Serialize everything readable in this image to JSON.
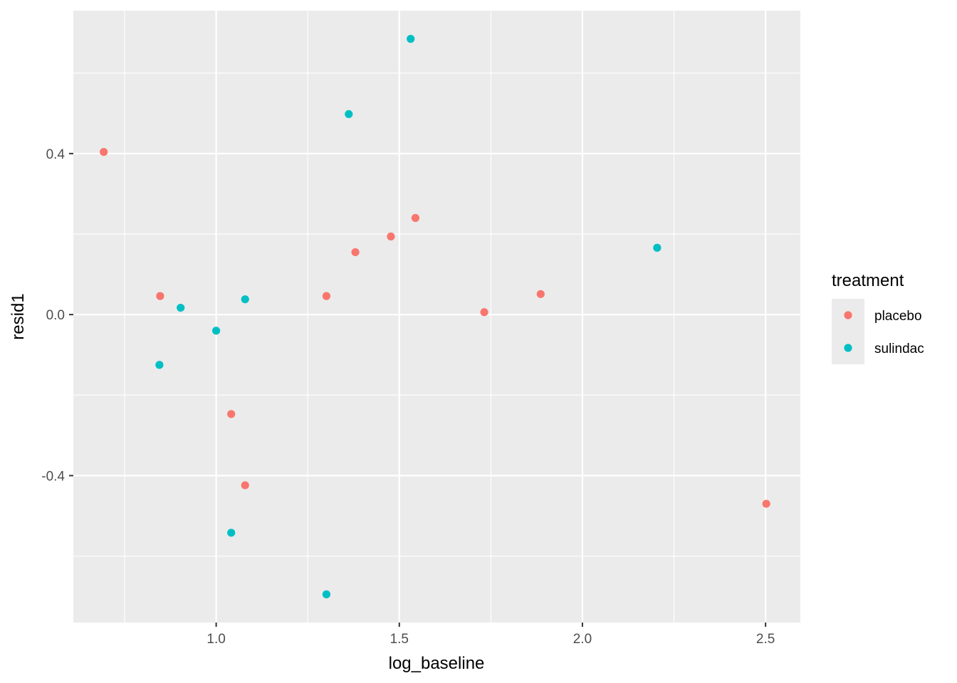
{
  "chart_data": {
    "type": "scatter",
    "xlabel": "log_baseline",
    "ylabel": "resid1",
    "xlim": [
      0.61,
      2.595
    ],
    "ylim": [
      -0.765,
      0.755
    ],
    "x_ticks": [
      1.0,
      1.5,
      2.0,
      2.5
    ],
    "x_tick_labels": [
      "1.0",
      "1.5",
      "2.0",
      "2.5"
    ],
    "x_minor": [
      0.75,
      1.25,
      1.75,
      2.25
    ],
    "y_ticks": [
      -0.4,
      0.0,
      0.4
    ],
    "y_tick_labels": [
      "-0.4",
      "0.0",
      "0.4"
    ],
    "y_minor": [
      -0.6,
      -0.2,
      0.2,
      0.6
    ],
    "grid": true,
    "legend": {
      "title": "treatment",
      "position": "right"
    },
    "series": [
      {
        "name": "placebo",
        "color": "#F8766D",
        "points": [
          {
            "x": 0.693,
            "y": 0.404
          },
          {
            "x": 0.847,
            "y": 0.046
          },
          {
            "x": 1.041,
            "y": -0.247
          },
          {
            "x": 1.079,
            "y": -0.424
          },
          {
            "x": 1.301,
            "y": 0.046
          },
          {
            "x": 1.38,
            "y": 0.155
          },
          {
            "x": 1.477,
            "y": 0.194
          },
          {
            "x": 1.544,
            "y": 0.24
          },
          {
            "x": 1.732,
            "y": 0.006
          },
          {
            "x": 1.886,
            "y": 0.051
          },
          {
            "x": 2.502,
            "y": -0.47
          }
        ]
      },
      {
        "name": "sulindac",
        "color": "#00BFC4",
        "points": [
          {
            "x": 0.845,
            "y": -0.125
          },
          {
            "x": 0.903,
            "y": 0.017
          },
          {
            "x": 1.0,
            "y": -0.04
          },
          {
            "x": 1.079,
            "y": 0.038
          },
          {
            "x": 1.041,
            "y": -0.542
          },
          {
            "x": 1.301,
            "y": -0.695
          },
          {
            "x": 1.362,
            "y": 0.498
          },
          {
            "x": 1.531,
            "y": 0.685
          },
          {
            "x": 2.204,
            "y": 0.166
          }
        ]
      }
    ]
  }
}
